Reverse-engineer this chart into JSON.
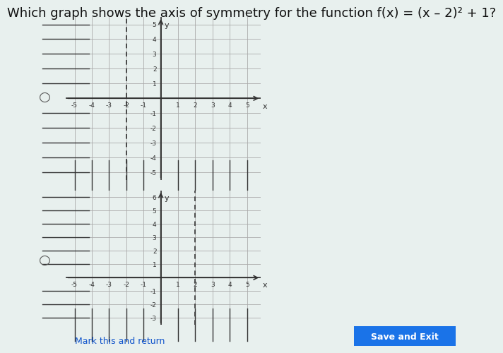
{
  "title": "Which graph shows the axis of symmetry for the function f(x) = (x – 2)² + 1?",
  "title_fontsize": 13,
  "bg_color": "#e8f0ee",
  "graph1": {
    "xlim": [
      -5.5,
      5.8
    ],
    "ylim": [
      -5.5,
      5.5
    ],
    "xticks": [
      -5,
      -4,
      -3,
      -2,
      -1,
      0,
      1,
      2,
      3,
      4,
      5
    ],
    "yticks": [
      -5,
      -4,
      -3,
      -2,
      -1,
      0,
      1,
      2,
      3,
      4,
      5
    ],
    "dashed_x": -2,
    "grid_color": "#aaaaaa",
    "axis_color": "#333333"
  },
  "graph2": {
    "xlim": [
      -5.5,
      5.8
    ],
    "ylim": [
      -3.5,
      6.5
    ],
    "xticks": [
      -5,
      -4,
      -3,
      -2,
      -1,
      0,
      1,
      2,
      3,
      4,
      5
    ],
    "yticks": [
      -3,
      -2,
      -1,
      0,
      1,
      2,
      3,
      4,
      5,
      6
    ],
    "dashed_x": 2,
    "grid_color": "#aaaaaa",
    "axis_color": "#333333"
  },
  "radio_color": "#555555",
  "mark_text": "Mark this and return",
  "save_text": "Save and Exit"
}
